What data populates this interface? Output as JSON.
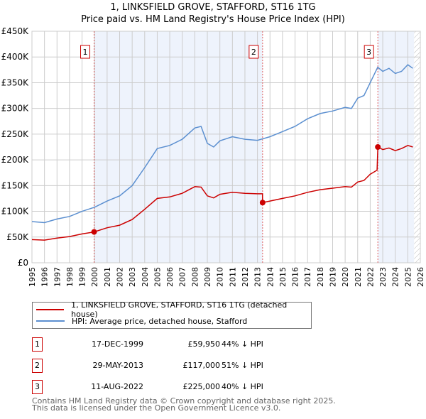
{
  "title_line1": "1, LINKSFIELD GROVE, STAFFORD, ST16 1TG",
  "title_line2": "Price paid vs. HM Land Registry's House Price Index (HPI)",
  "chart_data": {
    "type": "line",
    "xlim": [
      1995,
      2026
    ],
    "ylim": [
      0,
      450000
    ],
    "x_ticks": [
      "1995",
      "1996",
      "1997",
      "1998",
      "1999",
      "2000",
      "2001",
      "2002",
      "2003",
      "2004",
      "2005",
      "2006",
      "2007",
      "2008",
      "2009",
      "2010",
      "2011",
      "2012",
      "2013",
      "2014",
      "2015",
      "2016",
      "2017",
      "2018",
      "2019",
      "2020",
      "2021",
      "2022",
      "2023",
      "2024",
      "2025",
      "2026"
    ],
    "y_ticks": [
      {
        "v": 0,
        "label": "£0"
      },
      {
        "v": 50000,
        "label": "£50K"
      },
      {
        "v": 100000,
        "label": "£100K"
      },
      {
        "v": 150000,
        "label": "£150K"
      },
      {
        "v": 200000,
        "label": "£200K"
      },
      {
        "v": 250000,
        "label": "£250K"
      },
      {
        "v": 300000,
        "label": "£300K"
      },
      {
        "v": 350000,
        "label": "£350K"
      },
      {
        "v": 400000,
        "label": "£400K"
      },
      {
        "v": 450000,
        "label": "£450K"
      }
    ],
    "grid": true,
    "shaded_periods": [
      [
        1999.96,
        2013.41
      ],
      [
        2022.61,
        2025.5
      ]
    ],
    "hatched_after": 2025.5,
    "series": [
      {
        "name": "1, LINKSFIELD GROVE, STAFFORD, ST16 1TG (detached house)",
        "color": "#cc0000",
        "x": [
          1995,
          1996,
          1997,
          1998,
          1999,
          1999.96,
          2001,
          2002,
          2003,
          2004,
          2005,
          2006,
          2007,
          2008,
          2008.5,
          2009,
          2009.5,
          2010,
          2011,
          2012,
          2013,
          2013.4,
          2013.41,
          2014,
          2015,
          2016,
          2017,
          2018,
          2019,
          2020,
          2020.5,
          2021,
          2021.5,
          2022,
          2022.55,
          2022.61,
          2023,
          2023.5,
          2024,
          2024.5,
          2025,
          2025.4
        ],
        "y": [
          45000,
          44000,
          48000,
          51000,
          56000,
          59950,
          68000,
          73000,
          84000,
          104000,
          125000,
          128000,
          135000,
          148000,
          147000,
          130000,
          126000,
          133000,
          137000,
          135000,
          134000,
          134000,
          117000,
          120000,
          125000,
          130000,
          137000,
          142000,
          145000,
          148000,
          147000,
          157000,
          160000,
          172000,
          180000,
          225000,
          220000,
          223000,
          218000,
          222000,
          228000,
          225000
        ]
      },
      {
        "name": "HPI: Average price, detached house, Stafford",
        "color": "#5b8fd0",
        "x": [
          1995,
          1996,
          1997,
          1998,
          1999,
          2000,
          2001,
          2002,
          2003,
          2004,
          2005,
          2006,
          2007,
          2008,
          2008.5,
          2009,
          2009.5,
          2010,
          2011,
          2012,
          2013,
          2014,
          2015,
          2016,
          2017,
          2018,
          2019,
          2020,
          2020.5,
          2021,
          2021.5,
          2022,
          2022.6,
          2023,
          2023.5,
          2024,
          2024.5,
          2025,
          2025.4
        ],
        "y": [
          80000,
          78000,
          85000,
          90000,
          100000,
          108000,
          120000,
          130000,
          150000,
          185000,
          222000,
          228000,
          240000,
          262000,
          265000,
          232000,
          225000,
          237000,
          245000,
          240000,
          238000,
          245000,
          255000,
          265000,
          280000,
          290000,
          295000,
          302000,
          300000,
          320000,
          325000,
          350000,
          380000,
          372000,
          378000,
          368000,
          372000,
          385000,
          378000
        ]
      }
    ],
    "sales": [
      {
        "label": "1",
        "x": 1999.96,
        "y": 59950
      },
      {
        "label": "2",
        "x": 2013.41,
        "y": 117000
      },
      {
        "label": "3",
        "x": 2022.61,
        "y": 225000
      }
    ],
    "legend_position": "below"
  },
  "legend": {
    "items": [
      {
        "label": "1, LINKSFIELD GROVE, STAFFORD, ST16 1TG (detached house)",
        "color": "#cc0000"
      },
      {
        "label": "HPI: Average price, detached house, Stafford",
        "color": "#5b8fd0"
      }
    ]
  },
  "transactions": [
    {
      "num": "1",
      "date": "17-DEC-1999",
      "price": "£59,950",
      "hpi": "44% ↓ HPI"
    },
    {
      "num": "2",
      "date": "29-MAY-2013",
      "price": "£117,000",
      "hpi": "51% ↓ HPI"
    },
    {
      "num": "3",
      "date": "11-AUG-2022",
      "price": "£225,000",
      "hpi": "40% ↓ HPI"
    }
  ],
  "footer_line1": "Contains HM Land Registry data © Crown copyright and database right 2025.",
  "footer_line2": "This data is licensed under the Open Government Licence v3.0."
}
